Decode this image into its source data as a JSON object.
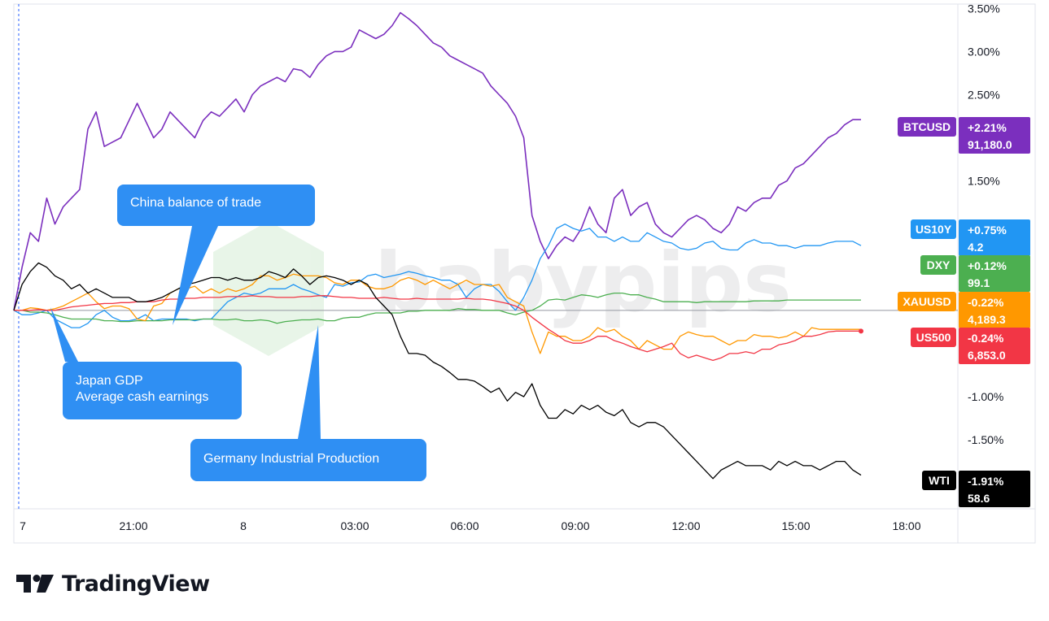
{
  "chart_data": {
    "type": "line",
    "xlabel": "",
    "ylabel": "",
    "x_ticks": [
      "7",
      "21:00",
      "8",
      "03:00",
      "06:00",
      "09:00",
      "12:00",
      "15:00",
      "18:00"
    ],
    "y_ticks": [
      "3.50%",
      "3.00%",
      "2.50%",
      "1.50%",
      "-1.00%",
      "-1.50%"
    ],
    "ylim": [
      -2.3,
      3.55
    ],
    "watermark": "babypips",
    "grid": false,
    "series": [
      {
        "name": "BTCUSD",
        "color": "#7b2fbe",
        "change": "+2.21%",
        "price": "91,180.0",
        "values": [
          0,
          0.5,
          0.9,
          0.8,
          1.3,
          1.0,
          1.2,
          1.3,
          1.4,
          2.1,
          2.3,
          1.9,
          1.95,
          2.0,
          2.2,
          2.4,
          2.2,
          2.0,
          2.1,
          2.3,
          2.2,
          2.1,
          2.0,
          2.2,
          2.3,
          2.25,
          2.35,
          2.45,
          2.3,
          2.5,
          2.6,
          2.65,
          2.7,
          2.65,
          2.8,
          2.78,
          2.7,
          2.85,
          2.95,
          3.0,
          3.0,
          3.05,
          3.25,
          3.2,
          3.15,
          3.2,
          3.3,
          3.45,
          3.38,
          3.3,
          3.2,
          3.1,
          3.05,
          2.95,
          2.9,
          2.85,
          2.8,
          2.75,
          2.6,
          2.5,
          2.4,
          2.25,
          2.0,
          1.1,
          0.8,
          0.6,
          0.75,
          0.85,
          0.8,
          0.95,
          1.2,
          1.0,
          0.9,
          1.3,
          1.4,
          1.1,
          1.2,
          1.25,
          1.0,
          0.9,
          0.85,
          0.95,
          1.05,
          1.1,
          1.05,
          0.95,
          0.9,
          1.0,
          1.2,
          1.15,
          1.25,
          1.3,
          1.3,
          1.45,
          1.5,
          1.65,
          1.7,
          1.8,
          1.9,
          2.0,
          2.05,
          2.15,
          2.21,
          2.21
        ]
      },
      {
        "name": "US10Y",
        "color": "#2196f3",
        "change": "+0.75%",
        "price": "4.2",
        "values": [
          0,
          -0.05,
          -0.05,
          -0.03,
          0.0,
          -0.1,
          -0.15,
          -0.2,
          -0.2,
          -0.15,
          -0.05,
          0.0,
          -0.08,
          -0.12,
          -0.12,
          -0.1,
          -0.05,
          -0.12,
          -0.1,
          -0.1,
          -0.1,
          -0.1,
          -0.12,
          -0.1,
          -0.1,
          0.0,
          0.1,
          0.15,
          0.2,
          0.18,
          0.2,
          0.25,
          0.25,
          0.25,
          0.3,
          0.25,
          0.22,
          0.18,
          0.15,
          0.3,
          0.28,
          0.32,
          0.33,
          0.4,
          0.42,
          0.38,
          0.4,
          0.42,
          0.45,
          0.43,
          0.4,
          0.38,
          0.35,
          0.35,
          0.3,
          0.15,
          0.25,
          0.3,
          0.3,
          0.22,
          0.1,
          0.0,
          0.15,
          0.35,
          0.6,
          0.75,
          0.95,
          1.0,
          0.95,
          0.92,
          0.95,
          0.85,
          0.85,
          0.8,
          0.85,
          0.8,
          0.8,
          0.9,
          0.85,
          0.8,
          0.78,
          0.72,
          0.7,
          0.72,
          0.78,
          0.8,
          0.72,
          0.7,
          0.7,
          0.78,
          0.82,
          0.78,
          0.78,
          0.75,
          0.75,
          0.72,
          0.75,
          0.75,
          0.75,
          0.78,
          0.8,
          0.8,
          0.8,
          0.75
        ]
      },
      {
        "name": "DXY",
        "color": "#4caf50",
        "change": "+0.12%",
        "price": "99.1",
        "values": [
          0,
          0,
          -0.02,
          -0.02,
          -0.03,
          -0.05,
          -0.08,
          -0.1,
          -0.1,
          -0.1,
          -0.1,
          -0.12,
          -0.12,
          -0.13,
          -0.13,
          -0.12,
          -0.12,
          -0.12,
          -0.12,
          -0.11,
          -0.11,
          -0.11,
          -0.11,
          -0.1,
          -0.1,
          -0.11,
          -0.11,
          -0.1,
          -0.12,
          -0.12,
          -0.11,
          -0.12,
          -0.15,
          -0.13,
          -0.12,
          -0.11,
          -0.11,
          -0.1,
          -0.12,
          -0.12,
          -0.09,
          -0.08,
          -0.08,
          -0.05,
          -0.03,
          -0.03,
          -0.03,
          -0.03,
          -0.01,
          -0.01,
          0.0,
          0.0,
          0.0,
          0.0,
          0.02,
          0.01,
          0.01,
          0.0,
          0.0,
          0.0,
          -0.03,
          -0.05,
          -0.02,
          0.0,
          0.05,
          0.12,
          0.13,
          0.12,
          0.15,
          0.18,
          0.17,
          0.15,
          0.18,
          0.2,
          0.2,
          0.18,
          0.18,
          0.15,
          0.13,
          0.1,
          0.1,
          0.1,
          0.1,
          0.09,
          0.1,
          0.1,
          0.1,
          0.1,
          0.1,
          0.1,
          0.11,
          0.11,
          0.11,
          0.11,
          0.12,
          0.12,
          0.12,
          0.12,
          0.12,
          0.12,
          0.12,
          0.12,
          0.12,
          0.12
        ]
      },
      {
        "name": "XAUUSD",
        "color": "#ff9800",
        "change": "-0.22%",
        "price": "4,189.3",
        "values": [
          0,
          0,
          0.03,
          0.02,
          0.0,
          0.02,
          0.05,
          0.1,
          0.15,
          0.2,
          0.1,
          0.02,
          0.05,
          0.05,
          0.02,
          -0.1,
          -0.12,
          0.05,
          0.08,
          0.2,
          0.25,
          0.25,
          0.28,
          0.2,
          0.25,
          0.2,
          0.25,
          0.22,
          0.25,
          0.3,
          0.4,
          0.4,
          0.35,
          0.38,
          0.42,
          0.4,
          0.4,
          0.4,
          0.38,
          0.32,
          0.3,
          0.35,
          0.35,
          0.28,
          0.25,
          0.25,
          0.28,
          0.35,
          0.38,
          0.35,
          0.3,
          0.35,
          0.3,
          0.25,
          0.3,
          0.35,
          0.3,
          0.3,
          0.28,
          0.3,
          0.15,
          0.1,
          0.05,
          -0.25,
          -0.5,
          -0.25,
          -0.3,
          -0.3,
          -0.35,
          -0.35,
          -0.3,
          -0.2,
          -0.25,
          -0.22,
          -0.3,
          -0.35,
          -0.45,
          -0.35,
          -0.4,
          -0.45,
          -0.45,
          -0.3,
          -0.25,
          -0.28,
          -0.3,
          -0.3,
          -0.35,
          -0.4,
          -0.35,
          -0.35,
          -0.28,
          -0.3,
          -0.3,
          -0.32,
          -0.3,
          -0.25,
          -0.3,
          -0.2,
          -0.22,
          -0.22,
          -0.22,
          -0.22,
          -0.22,
          -0.22
        ]
      },
      {
        "name": "US500",
        "color": "#f23645",
        "change": "-0.24%",
        "price": "6,853.0",
        "values": [
          0,
          0,
          0,
          0.01,
          0.0,
          0.0,
          0.02,
          0.04,
          0.05,
          0.06,
          0.07,
          0.08,
          0.08,
          0.09,
          0.09,
          0.1,
          0.1,
          0.1,
          0.12,
          0.13,
          0.13,
          0.14,
          0.14,
          0.15,
          0.15,
          0.15,
          0.16,
          0.16,
          0.16,
          0.17,
          0.16,
          0.16,
          0.15,
          0.15,
          0.15,
          0.16,
          0.16,
          0.17,
          0.17,
          0.16,
          0.15,
          0.15,
          0.14,
          0.14,
          0.14,
          0.15,
          0.14,
          0.13,
          0.13,
          0.14,
          0.13,
          0.13,
          0.13,
          0.13,
          0.13,
          0.14,
          0.13,
          0.13,
          0.12,
          0.1,
          0.08,
          0.05,
          0.0,
          -0.08,
          -0.15,
          -0.22,
          -0.28,
          -0.35,
          -0.38,
          -0.38,
          -0.35,
          -0.3,
          -0.3,
          -0.35,
          -0.38,
          -0.42,
          -0.45,
          -0.48,
          -0.45,
          -0.42,
          -0.38,
          -0.5,
          -0.55,
          -0.52,
          -0.55,
          -0.58,
          -0.55,
          -0.5,
          -0.5,
          -0.48,
          -0.5,
          -0.45,
          -0.45,
          -0.4,
          -0.38,
          -0.35,
          -0.3,
          -0.3,
          -0.28,
          -0.25,
          -0.24,
          -0.24,
          -0.24,
          -0.24
        ]
      },
      {
        "name": "WTI",
        "color": "#000000",
        "change": "-1.91%",
        "price": "58.6",
        "values": [
          0,
          0.3,
          0.45,
          0.55,
          0.5,
          0.4,
          0.35,
          0.25,
          0.3,
          0.2,
          0.25,
          0.2,
          0.15,
          0.15,
          0.15,
          0.1,
          0.1,
          0.12,
          0.15,
          0.2,
          0.25,
          0.3,
          0.32,
          0.35,
          0.38,
          0.38,
          0.35,
          0.38,
          0.35,
          0.35,
          0.38,
          0.45,
          0.42,
          0.38,
          0.48,
          0.4,
          0.3,
          0.38,
          0.4,
          0.38,
          0.35,
          0.3,
          0.35,
          0.3,
          0.15,
          0.05,
          -0.05,
          -0.3,
          -0.5,
          -0.5,
          -0.52,
          -0.6,
          -0.65,
          -0.72,
          -0.8,
          -0.8,
          -0.82,
          -0.88,
          -0.95,
          -0.9,
          -1.05,
          -0.95,
          -1.0,
          -0.85,
          -1.1,
          -1.25,
          -1.25,
          -1.15,
          -1.2,
          -1.1,
          -1.15,
          -1.1,
          -1.18,
          -1.22,
          -1.15,
          -1.3,
          -1.35,
          -1.3,
          -1.3,
          -1.35,
          -1.45,
          -1.55,
          -1.65,
          -1.75,
          -1.85,
          -1.95,
          -1.85,
          -1.8,
          -1.75,
          -1.8,
          -1.8,
          -1.8,
          -1.85,
          -1.75,
          -1.8,
          -1.75,
          -1.8,
          -1.8,
          -1.85,
          -1.8,
          -1.75,
          -1.75,
          -1.85,
          -1.91
        ]
      }
    ],
    "annotations": [
      {
        "lines": [
          "China balance of trade"
        ]
      },
      {
        "lines": [
          "Japan GDP",
          "Average cash earnings"
        ]
      },
      {
        "lines": [
          "Germany Industrial Production"
        ]
      }
    ]
  },
  "logo": {
    "name": "TradingView"
  }
}
